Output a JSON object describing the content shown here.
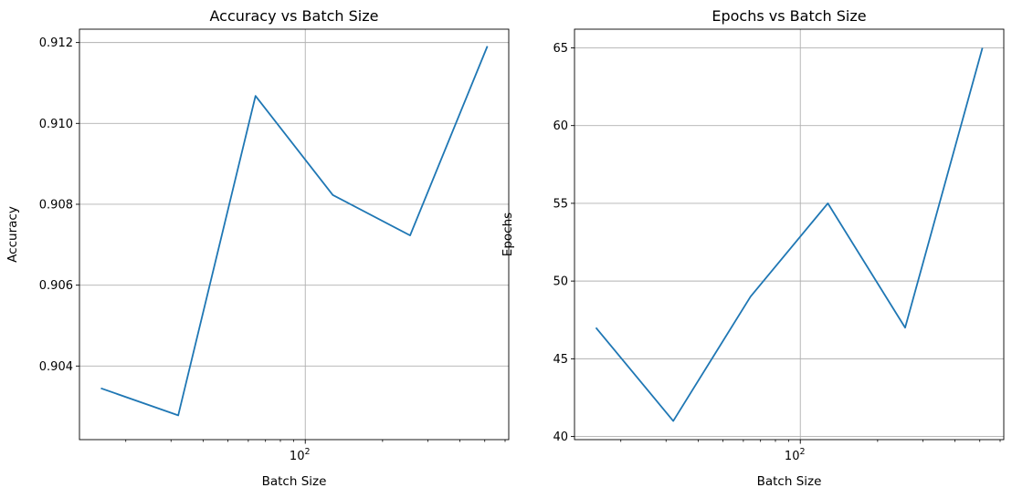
{
  "chart_data": [
    {
      "type": "line",
      "title": "Accuracy vs Batch Size",
      "xlabel": "Batch Size",
      "ylabel": "Accuracy",
      "xscale": "log",
      "x": [
        16,
        32,
        64,
        128,
        256,
        512
      ],
      "series": [
        {
          "values": [
            0.90345,
            0.90278,
            0.91068,
            0.90823,
            0.90723,
            0.91191
          ]
        }
      ],
      "xlim": [
        13.2,
        620
      ],
      "ylim": [
        0.90218,
        0.91233
      ],
      "xticks": [
        {
          "value": 100,
          "base": "10",
          "exp": "2"
        }
      ],
      "yticks": [
        "0.904",
        "0.906",
        "0.908",
        "0.910",
        "0.912"
      ],
      "grid": true,
      "color": "#1f77b4"
    },
    {
      "type": "line",
      "title": "Epochs vs Batch Size",
      "xlabel": "Batch Size",
      "ylabel": "Epochs",
      "xscale": "log",
      "x": [
        16,
        32,
        64,
        128,
        256,
        512
      ],
      "series": [
        {
          "values": [
            47,
            41,
            49,
            55,
            47,
            65
          ]
        }
      ],
      "xlim": [
        13.2,
        620
      ],
      "ylim": [
        39.8,
        66.2
      ],
      "xticks": [
        {
          "value": 100,
          "base": "10",
          "exp": "2"
        }
      ],
      "yticks": [
        "40",
        "45",
        "50",
        "55",
        "60",
        "65"
      ],
      "grid": true,
      "color": "#1f77b4"
    }
  ]
}
